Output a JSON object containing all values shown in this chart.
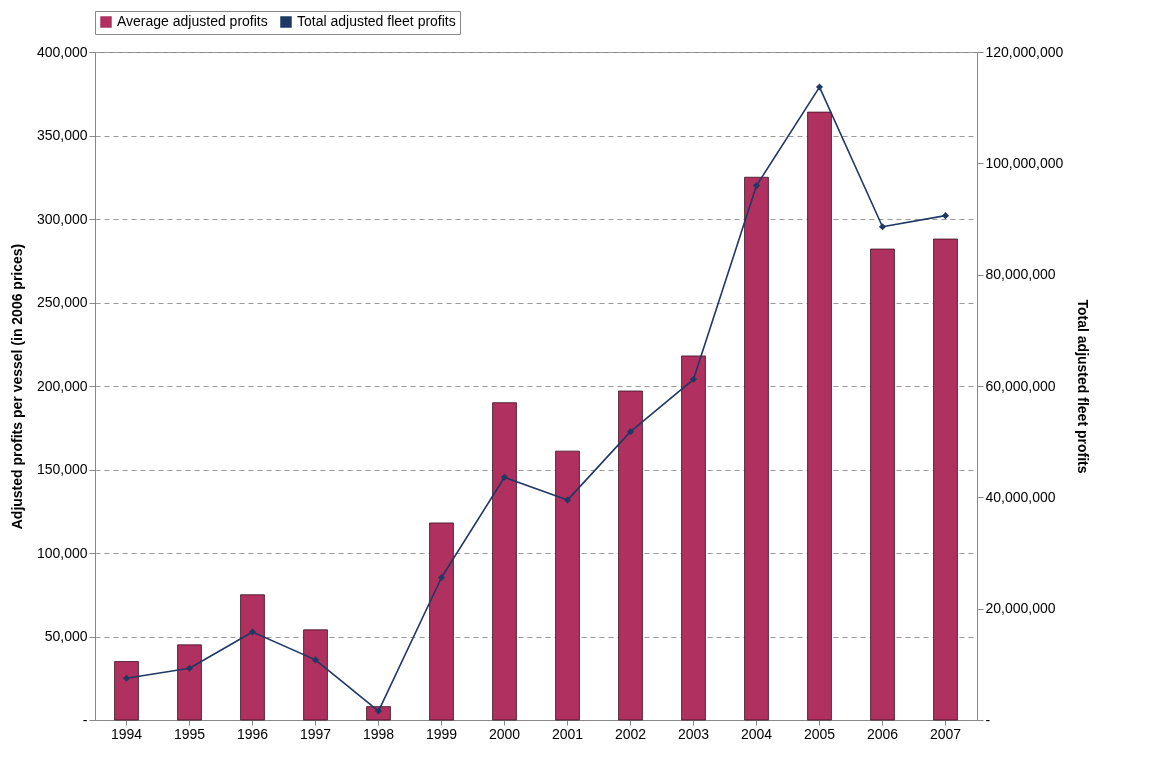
{
  "chart_data": {
    "type": "bar",
    "ylabel": "Adjusted profits per vessel (in 2006 prices)",
    "y2label": "Total adjusted fleet profits",
    "categories": [
      "1994",
      "1995",
      "1996",
      "1997",
      "1998",
      "1999",
      "2000",
      "2001",
      "2002",
      "2003",
      "2004",
      "2005",
      "2006",
      "2007"
    ],
    "series": [
      {
        "name": "Average adjusted profits",
        "color": "#b03060",
        "values": [
          35000,
          45000,
          75000,
          54000,
          8000,
          118000,
          190000,
          161000,
          197000,
          218000,
          325000,
          364000,
          282000,
          288000
        ]
      },
      {
        "name": "Total adjusted fleet profits",
        "type": "line",
        "axis": "y2",
        "color": "#1f3864",
        "marker": "diamond",
        "values": [
          7500000,
          9300000,
          15800000,
          10800000,
          1600000,
          25600000,
          43600000,
          39500000,
          51800000,
          61200000,
          96000000,
          113700000,
          88600000,
          90600000
        ]
      }
    ],
    "ylim": [
      0,
      400000
    ],
    "yticks": [
      {
        "value": 0,
        "label": "-"
      },
      {
        "value": 50000,
        "label": "50,000"
      },
      {
        "value": 100000,
        "label": "100,000"
      },
      {
        "value": 150000,
        "label": "150,000"
      },
      {
        "value": 200000,
        "label": "200,000"
      },
      {
        "value": 250000,
        "label": "250,000"
      },
      {
        "value": 300000,
        "label": "300,000"
      },
      {
        "value": 350000,
        "label": "350,000"
      },
      {
        "value": 400000,
        "label": "400,000"
      }
    ],
    "y2lim": [
      0,
      120000000
    ],
    "y2ticks": [
      {
        "value": 0,
        "label": "-"
      },
      {
        "value": 20000000,
        "label": "20,000,000"
      },
      {
        "value": 40000000,
        "label": "40,000,000"
      },
      {
        "value": 60000000,
        "label": "60,000,000"
      },
      {
        "value": 80000000,
        "label": "80,000,000"
      },
      {
        "value": 100000000,
        "label": "100,000,000"
      },
      {
        "value": 120000000,
        "label": "120,000,000"
      }
    ],
    "grid": "y",
    "legend": "top"
  }
}
